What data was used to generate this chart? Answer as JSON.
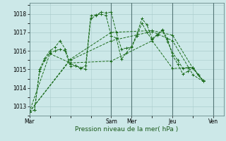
{
  "background_color": "#cce8e8",
  "grid_color": "#aacccc",
  "line_color": "#1a6b1a",
  "xlabel": "Pression niveau de la mer( hPa )",
  "ylim": [
    1012.5,
    1018.6
  ],
  "yticks": [
    1013,
    1014,
    1015,
    1016,
    1017,
    1018
  ],
  "x_positions": [
    0,
    96,
    120,
    168,
    216
  ],
  "x_labels": [
    "Mar",
    "Sam",
    "Mer",
    "Jeu",
    "Ven"
  ],
  "x_vlines": [
    96,
    120,
    168,
    216
  ],
  "xlim": [
    0,
    228
  ],
  "series": [
    {
      "x": [
        0,
        6,
        12,
        18,
        24,
        30,
        36,
        42,
        48,
        54,
        60,
        66,
        72,
        78,
        84,
        90,
        96,
        102,
        108,
        114,
        120,
        126,
        132,
        138,
        144,
        150,
        156,
        162,
        168,
        174,
        180,
        186,
        192,
        198,
        204
      ],
      "y": [
        1012.7,
        1012.8,
        1014.9,
        1015.5,
        1015.9,
        1016.0,
        1016.1,
        1016.0,
        1015.15,
        1015.2,
        1015.1,
        1015.0,
        1017.75,
        1017.9,
        1018.1,
        1018.05,
        1018.1,
        1017.0,
        1016.1,
        1016.15,
        1016.2,
        1016.8,
        1017.5,
        1017.0,
        1016.6,
        1016.85,
        1017.1,
        1016.5,
        1015.9,
        1015.5,
        1015.05,
        1015.1,
        1015.1,
        1014.7,
        1014.4
      ]
    },
    {
      "x": [
        0,
        6,
        12,
        18,
        24,
        30,
        36,
        42,
        48,
        54,
        60,
        66,
        72,
        78,
        84,
        90,
        96,
        102,
        108,
        114,
        120,
        126,
        132,
        138,
        144,
        150,
        156,
        162,
        168,
        174,
        180,
        186,
        192,
        198,
        204
      ],
      "y": [
        1012.7,
        1012.8,
        1015.0,
        1015.6,
        1016.0,
        1016.2,
        1016.55,
        1016.1,
        1015.3,
        1015.2,
        1015.05,
        1015.2,
        1017.9,
        1017.95,
        1018.0,
        1017.9,
        1016.8,
        1016.7,
        1015.55,
        1015.9,
        1016.25,
        1016.9,
        1017.75,
        1017.4,
        1016.65,
        1016.9,
        1017.15,
        1016.65,
        1015.75,
        1015.3,
        1014.75,
        1014.9,
        1015.1,
        1014.7,
        1014.4
      ]
    },
    {
      "x": [
        0,
        24,
        48,
        96,
        144,
        168,
        192,
        204
      ],
      "y": [
        1012.7,
        1015.85,
        1015.35,
        1015.45,
        1016.55,
        1015.05,
        1015.1,
        1014.35
      ]
    },
    {
      "x": [
        0,
        48,
        96,
        144,
        168,
        192,
        204
      ],
      "y": [
        1012.7,
        1015.5,
        1016.55,
        1017.05,
        1016.55,
        1014.7,
        1014.35
      ]
    },
    {
      "x": [
        0,
        48,
        96,
        144,
        168,
        192,
        204
      ],
      "y": [
        1012.7,
        1015.55,
        1017.0,
        1017.1,
        1016.85,
        1015.05,
        1014.35
      ]
    }
  ]
}
